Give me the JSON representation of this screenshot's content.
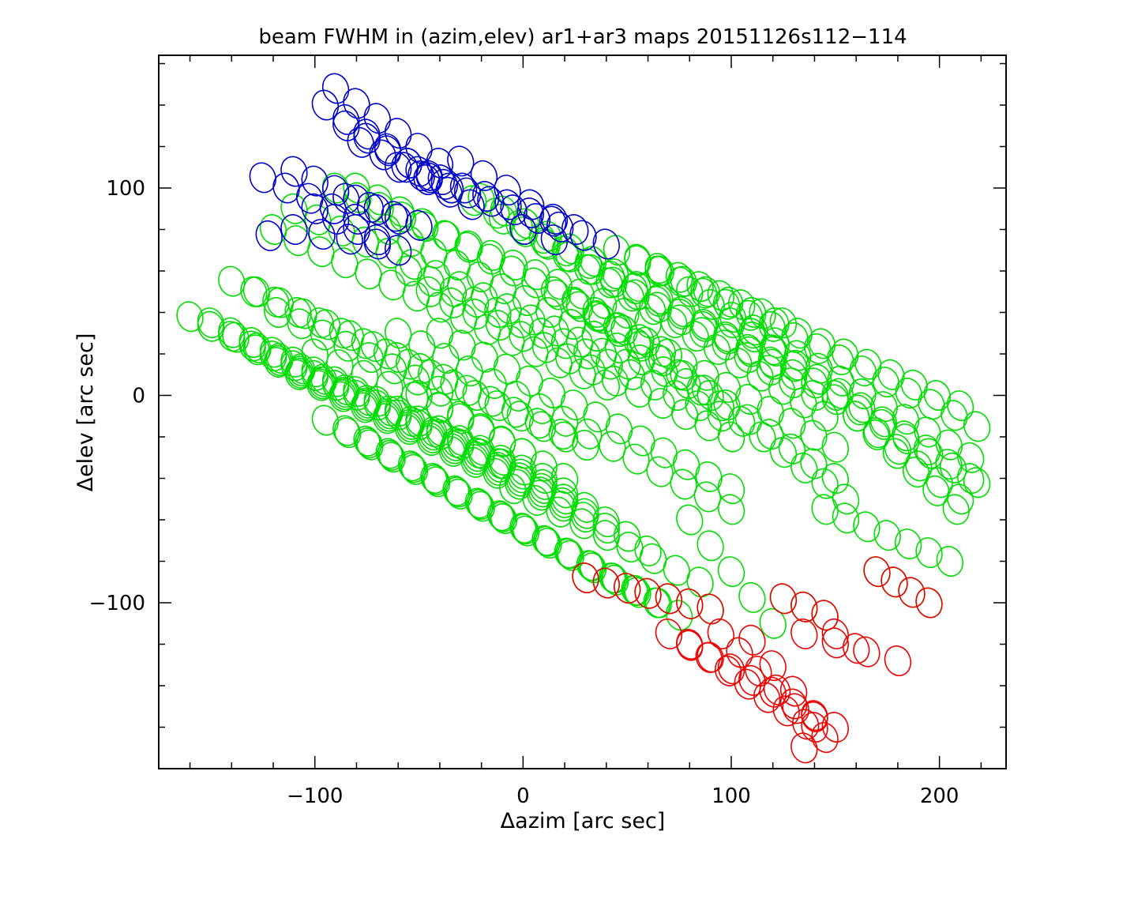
{
  "chart_data": {
    "type": "scatter",
    "title": "beam FWHM in (azim,elev) ar1+ar3 maps 20151126s112−114",
    "xlabel": "Δazim [arc sec]",
    "ylabel": "Δelev [arc sec]",
    "xlim": [
      -175,
      232
    ],
    "ylim": [
      -180,
      164
    ],
    "x_ticks": [
      -100,
      0,
      100,
      200
    ],
    "y_ticks": [
      -100,
      0,
      100
    ],
    "x_tick_labels": [
      "−100",
      "0",
      "100",
      "200"
    ],
    "y_tick_labels": [
      "−100",
      "0",
      "100"
    ],
    "grid": false,
    "marker": "ellipse-outline",
    "series": [
      {
        "color": "#00dd00",
        "strips": [
          {
            "from": [
              -160,
              38
            ],
            "to": [
              -10,
              -33
            ],
            "n": 16
          },
          {
            "from": [
              -150,
              35
            ],
            "to": [
              0,
              -36
            ],
            "n": 16
          },
          {
            "from": [
              -138,
              28
            ],
            "to": [
              10,
              -43
            ],
            "n": 15
          },
          {
            "from": [
              -128,
              22
            ],
            "to": [
              20,
              -50
            ],
            "n": 15
          },
          {
            "from": [
              -118,
              16
            ],
            "to": [
              30,
              -57
            ],
            "n": 15
          },
          {
            "from": [
              -108,
              10
            ],
            "to": [
              40,
              -64
            ],
            "n": 15
          },
          {
            "from": [
              -95,
              -12
            ],
            "to": [
              55,
              -95
            ],
            "n": 15
          },
          {
            "from": [
              -85,
              -17
            ],
            "to": [
              65,
              -100
            ],
            "n": 15
          },
          {
            "from": [
              -75,
              -22
            ],
            "to": [
              75,
              -106
            ],
            "n": 15
          },
          {
            "from": [
              -140,
              55
            ],
            "to": [
              20,
              -20
            ],
            "n": 16
          },
          {
            "from": [
              -128,
              50
            ],
            "to": [
              30,
              -24
            ],
            "n": 15
          },
          {
            "from": [
              -118,
              40
            ],
            "to": [
              -40,
              2
            ],
            "n": 8
          },
          {
            "from": [
              -100,
              20
            ],
            "to": [
              -40,
              -6
            ],
            "n": 6
          },
          {
            "from": [
              -60,
              30
            ],
            "to": [
              100,
              -55
            ],
            "n": 15
          },
          {
            "from": [
              -40,
              30
            ],
            "to": [
              100,
              -45
            ],
            "n": 14
          },
          {
            "from": [
              -120,
              80
            ],
            "to": [
              40,
              5
            ],
            "n": 15
          },
          {
            "from": [
              -110,
              90
            ],
            "to": [
              50,
              15
            ],
            "n": 15
          },
          {
            "from": [
              -90,
              100
            ],
            "to": [
              60,
              35
            ],
            "n": 15
          },
          {
            "from": [
              -80,
              100
            ],
            "to": [
              70,
              20
            ],
            "n": 15
          },
          {
            "from": [
              -65,
              80
            ],
            "to": [
              90,
              0
            ],
            "n": 15
          },
          {
            "from": [
              -55,
              60
            ],
            "to": [
              95,
              -10
            ],
            "n": 15
          },
          {
            "from": [
              -45,
              50
            ],
            "to": [
              100,
              -20
            ],
            "n": 14
          },
          {
            "from": [
              -35,
              100
            ],
            "to": [
              120,
              15
            ],
            "n": 15
          },
          {
            "from": [
              -20,
              95
            ],
            "to": [
              130,
              10
            ],
            "n": 15
          },
          {
            "from": [
              -10,
              85
            ],
            "to": [
              140,
              0
            ],
            "n": 15
          },
          {
            "from": [
              0,
              80
            ],
            "to": [
              145,
              -10
            ],
            "n": 15
          },
          {
            "from": [
              15,
              50
            ],
            "to": [
              150,
              -25
            ],
            "n": 14
          },
          {
            "from": [
              25,
              45
            ],
            "to": [
              150,
              -40
            ],
            "n": 13
          },
          {
            "from": [
              35,
              40
            ],
            "to": [
              155,
              -50
            ],
            "n": 13
          },
          {
            "from": [
              45,
              70
            ],
            "to": [
              125,
              35
            ],
            "n": 9
          },
          {
            "from": [
              55,
              65
            ],
            "to": [
              210,
              -5
            ],
            "n": 15
          },
          {
            "from": [
              65,
              60
            ],
            "to": [
              218,
              -15
            ],
            "n": 15
          },
          {
            "from": [
              80,
              50
            ],
            "to": [
              215,
              -30
            ],
            "n": 14
          },
          {
            "from": [
              100,
              35
            ],
            "to": [
              215,
              -40
            ],
            "n": 12
          },
          {
            "from": [
              110,
              30
            ],
            "to": [
              210,
              -50
            ],
            "n": 11
          },
          {
            "from": [
              150,
              0
            ],
            "to": [
              218,
              -42
            ],
            "n": 7
          },
          {
            "from": [
              160,
              -10
            ],
            "to": [
              208,
              -55
            ],
            "n": 6
          },
          {
            "from": [
              145,
              -55
            ],
            "to": [
              205,
              -80
            ],
            "n": 7
          },
          {
            "from": [
              80,
              -60
            ],
            "to": [
              120,
              -110
            ],
            "n": 5
          },
          {
            "from": [
              -5,
              -45
            ],
            "to": [
              85,
              -90
            ],
            "n": 9
          },
          {
            "from": [
              10,
              -40
            ],
            "to": [
              60,
              -75
            ],
            "n": 6
          },
          {
            "from": [
              -30,
              -10
            ],
            "to": [
              20,
              -40
            ],
            "n": 6
          },
          {
            "from": [
              -50,
              0
            ],
            "to": [
              0,
              -28
            ],
            "n": 6
          },
          {
            "from": [
              30,
              -88
            ],
            "to": [
              90,
              -103
            ],
            "n": 7
          },
          {
            "from": [
              125,
              -98
            ],
            "to": [
              145,
              -106
            ],
            "n": 3
          },
          {
            "from": [
              170,
              -85
            ],
            "to": [
              195,
              -100
            ],
            "n": 4
          }
        ]
      },
      {
        "color": "#0000cc",
        "strips": [
          {
            "from": [
              -125,
              105
            ],
            "to": [
              -80,
              85
            ],
            "n": 5
          },
          {
            "from": [
              -110,
              108
            ],
            "to": [
              -60,
              85
            ],
            "n": 6
          },
          {
            "from": [
              -90,
              148
            ],
            "to": [
              -40,
              112
            ],
            "n": 6
          },
          {
            "from": [
              -95,
              140
            ],
            "to": [
              -45,
              105
            ],
            "n": 6
          },
          {
            "from": [
              -85,
              130
            ],
            "to": [
              -35,
              100
            ],
            "n": 6
          },
          {
            "from": [
              -78,
              122
            ],
            "to": [
              -25,
              92
            ],
            "n": 6
          },
          {
            "from": [
              -60,
              110
            ],
            "to": [
              40,
              73
            ],
            "n": 10
          },
          {
            "from": [
              -50,
              108
            ],
            "to": [
              25,
              80
            ],
            "n": 8
          },
          {
            "from": [
              -30,
              113
            ],
            "to": [
              15,
              85
            ],
            "n": 5
          },
          {
            "from": [
              -100,
              90
            ],
            "to": [
              -60,
              70
            ],
            "n": 5
          },
          {
            "from": [
              -110,
              80
            ],
            "to": [
              -70,
              73
            ],
            "n": 4
          },
          {
            "from": [
              -85,
              95
            ],
            "to": [
              -50,
              82
            ],
            "n": 4
          },
          {
            "from": [
              -122,
              77
            ],
            "to": [
              -122,
              77
            ],
            "n": 1
          },
          {
            "from": [
              0,
              80
            ],
            "to": [
              15,
              75
            ],
            "n": 2
          }
        ]
      },
      {
        "color": "#ee0000",
        "strips": [
          {
            "from": [
              30,
              -88
            ],
            "to": [
              90,
              -103
            ],
            "n": 7
          },
          {
            "from": [
              70,
              -115
            ],
            "to": [
              150,
              -160
            ],
            "n": 9
          },
          {
            "from": [
              80,
              -120
            ],
            "to": [
              145,
              -165
            ],
            "n": 8
          },
          {
            "from": [
              95,
              -115
            ],
            "to": [
              140,
              -160
            ],
            "n": 6
          },
          {
            "from": [
              110,
              -118
            ],
            "to": [
              140,
              -155
            ],
            "n": 4
          },
          {
            "from": [
              125,
              -98
            ],
            "to": [
              145,
              -106
            ],
            "n": 3
          },
          {
            "from": [
              135,
              -115
            ],
            "to": [
              180,
              -128
            ],
            "n": 4
          },
          {
            "from": [
              150,
              -115
            ],
            "to": [
              160,
              -122
            ],
            "n": 2
          },
          {
            "from": [
              170,
              -85
            ],
            "to": [
              195,
              -100
            ],
            "n": 4
          },
          {
            "from": [
              135,
              -170
            ],
            "to": [
              135,
              -170
            ],
            "n": 1
          }
        ]
      }
    ]
  }
}
